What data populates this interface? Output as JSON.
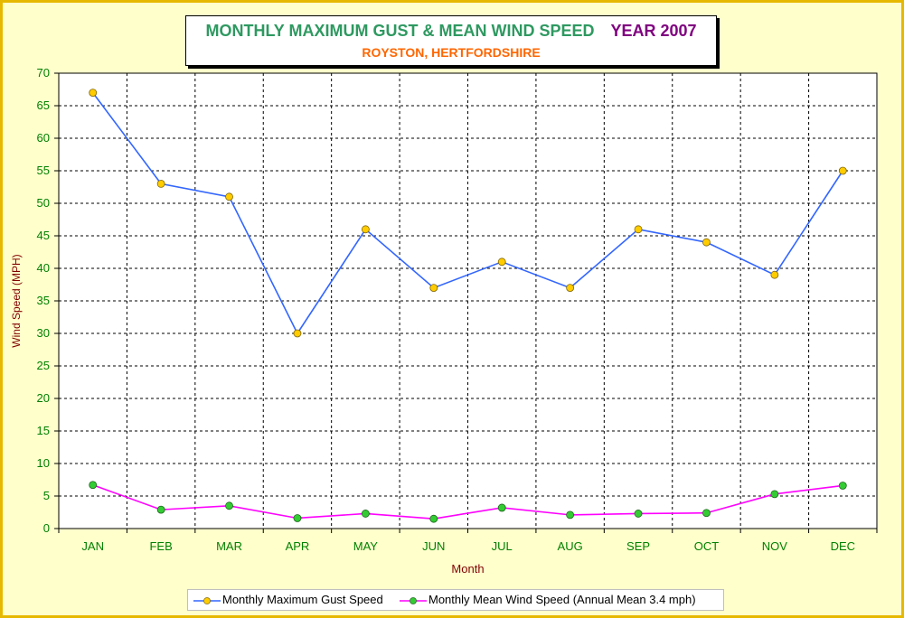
{
  "title": {
    "main": "MONTHLY MAXIMUM GUST & MEAN WIND SPEED",
    "year": "YEAR 2007",
    "subtitle": "ROYSTON, HERTFORDSHIRE"
  },
  "colors": {
    "background": "#ffffcc",
    "border": "#e6b800",
    "title_green": "#2e9960",
    "title_purple": "#800080",
    "subtitle_orange": "#ff6600",
    "axis_label": "#800000",
    "tick_label": "#008000",
    "gust_line": "#3366ff",
    "mean_line": "#ff00ff",
    "gust_marker": "#ffcc00",
    "mean_marker": "#33cc33"
  },
  "chart_data": {
    "type": "line",
    "categories": [
      "JAN",
      "FEB",
      "MAR",
      "APR",
      "MAY",
      "JUN",
      "JUL",
      "AUG",
      "SEP",
      "OCT",
      "NOV",
      "DEC"
    ],
    "series": [
      {
        "name": "Monthly Maximum Gust Speed",
        "values": [
          67,
          53,
          51,
          30,
          46,
          37,
          41,
          37,
          46,
          44,
          39,
          55
        ]
      },
      {
        "name": "Monthly Mean Wind Speed (Annual Mean 3.4 mph)",
        "values": [
          6.7,
          2.9,
          3.5,
          1.6,
          2.3,
          1.5,
          3.2,
          2.1,
          2.3,
          2.4,
          5.3,
          6.6
        ]
      }
    ],
    "xlabel": "Month",
    "ylabel": "Wind Speed (MPH)",
    "ylim": [
      0,
      70
    ],
    "yticks": [
      0,
      5,
      10,
      15,
      20,
      25,
      30,
      35,
      40,
      45,
      50,
      55,
      60,
      65,
      70
    ],
    "grid": true,
    "legend_position": "bottom"
  }
}
